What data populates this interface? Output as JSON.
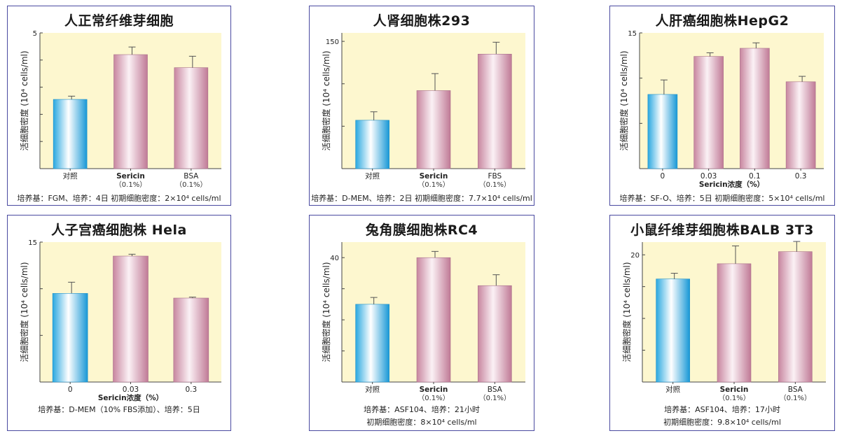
{
  "chart_data": [
    {
      "type": "bar",
      "title": "人正常纤维芽细胞",
      "ylabel": "活细胞密度 (10⁴ cells/ml)",
      "ylim": [
        0,
        5
      ],
      "yticks": [
        {
          "v": 5,
          "label": "5"
        },
        {
          "v": 4,
          "label": ""
        },
        {
          "v": 3,
          "label": ""
        },
        {
          "v": 2,
          "label": ""
        },
        {
          "v": 1,
          "label": ""
        }
      ],
      "categories": [
        {
          "label": "对照",
          "sub": ""
        },
        {
          "label": "Sericin",
          "sub": "（0.1%）"
        },
        {
          "label": "BSA",
          "sub": "（0.1%）"
        }
      ],
      "values": [
        2.55,
        4.2,
        3.72
      ],
      "errors": [
        0.12,
        0.28,
        0.42
      ],
      "xlabel": "",
      "notes": [
        "培养基：FGM、培养：4日 初期细胞密度：2×10⁴ cells/ml"
      ],
      "colors": [
        "#3ab8e8",
        "#d8a8c0",
        "#d8a8c0"
      ]
    },
    {
      "type": "bar",
      "title": "人肾细胞株293",
      "ylabel": "活细胞密度 (10⁴ cells/ml)",
      "ylim": [
        0,
        160
      ],
      "yticks": [
        {
          "v": 150,
          "label": "150"
        },
        {
          "v": 100,
          "label": ""
        },
        {
          "v": 50,
          "label": ""
        }
      ],
      "categories": [
        {
          "label": "对照",
          "sub": ""
        },
        {
          "label": "Sericin",
          "sub": "（0.1%）"
        },
        {
          "label": "FBS",
          "sub": "（0.1%）"
        }
      ],
      "values": [
        57,
        92,
        135
      ],
      "errors": [
        10,
        20,
        14
      ],
      "xlabel": "",
      "notes": [
        "培养基：D-MEM、培养：2日 初期细胞密度：7.7×10⁴ cells/ml"
      ],
      "colors": [
        "#3ab8e8",
        "#d8a8c0",
        "#d8a8c0"
      ]
    },
    {
      "type": "bar",
      "title": "人肝癌细胞株HepG2",
      "ylabel": "活细胞密度 (10⁴ cells/ml)",
      "ylim": [
        0,
        15
      ],
      "yticks": [
        {
          "v": 15,
          "label": "15"
        },
        {
          "v": 10,
          "label": ""
        },
        {
          "v": 5,
          "label": ""
        }
      ],
      "categories": [
        {
          "label": "0",
          "sub": ""
        },
        {
          "label": "0.03",
          "sub": ""
        },
        {
          "label": "0.1",
          "sub": ""
        },
        {
          "label": "0.3",
          "sub": ""
        }
      ],
      "values": [
        8.2,
        12.4,
        13.3,
        9.6
      ],
      "errors": [
        1.6,
        0.4,
        0.6,
        0.6
      ],
      "xlabel": "Sericin浓度（%）",
      "notes": [
        "培养基：SF-O、培养：5日 初期细胞密度：5×10⁴ cells/ml"
      ],
      "colors": [
        "#3ab8e8",
        "#d8a8c0",
        "#d8a8c0",
        "#d8a8c0"
      ]
    },
    {
      "type": "bar",
      "title": "人子宫癌细胞株 Hela",
      "ylabel": "活细胞密度 (10⁴ cells/ml)",
      "ylim": [
        0,
        15
      ],
      "yticks": [
        {
          "v": 15,
          "label": "15"
        },
        {
          "v": 10,
          "label": ""
        },
        {
          "v": 5,
          "label": ""
        }
      ],
      "categories": [
        {
          "label": "0",
          "sub": ""
        },
        {
          "label": "0.03",
          "sub": ""
        },
        {
          "label": "0.3",
          "sub": ""
        }
      ],
      "values": [
        9.5,
        13.5,
        9.0
      ],
      "errors": [
        1.2,
        0.2,
        0.1
      ],
      "xlabel": "Sericin浓度（%）",
      "notes": [
        "培养基：D-MEM（10% FBS添加）、培养：5日"
      ],
      "colors": [
        "#3ab8e8",
        "#d8a8c0",
        "#d8a8c0"
      ]
    },
    {
      "type": "bar",
      "title": "兔角膜细胞株RC4",
      "ylabel": "活细胞密度 (10⁴ cells/ml)",
      "ylim": [
        0,
        45
      ],
      "yticks": [
        {
          "v": 40,
          "label": "40"
        },
        {
          "v": 30,
          "label": ""
        },
        {
          "v": 20,
          "label": ""
        },
        {
          "v": 10,
          "label": ""
        }
      ],
      "categories": [
        {
          "label": "对照",
          "sub": ""
        },
        {
          "label": "Sericin",
          "sub": "（0.1%）"
        },
        {
          "label": "BSA",
          "sub": "（0.1%）"
        }
      ],
      "values": [
        25,
        40,
        31
      ],
      "errors": [
        2.2,
        2.0,
        3.5
      ],
      "xlabel": "",
      "notes": [
        "培养基：ASF104、培养：21小时",
        "初期细胞密度：8×10⁴ cells/ml"
      ],
      "colors": [
        "#3ab8e8",
        "#d8a8c0",
        "#d8a8c0"
      ]
    },
    {
      "type": "bar",
      "title": "小鼠纤维芽细胞株BALB 3T3",
      "ylabel": "活细胞密度 (10⁴ cells/ml)",
      "ylim": [
        0,
        22
      ],
      "yticks": [
        {
          "v": 20,
          "label": "20"
        },
        {
          "v": 15,
          "label": ""
        },
        {
          "v": 10,
          "label": ""
        },
        {
          "v": 5,
          "label": ""
        }
      ],
      "categories": [
        {
          "label": "对照",
          "sub": ""
        },
        {
          "label": "Sericin",
          "sub": "（0.1%）"
        },
        {
          "label": "BSA",
          "sub": "（0.1%）"
        }
      ],
      "values": [
        16.2,
        18.6,
        20.5
      ],
      "errors": [
        0.9,
        2.8,
        1.6
      ],
      "xlabel": "",
      "notes": [
        "培养基：ASF104、培养：17小时",
        "初期细胞密度：9.8×10⁴ cells/ml"
      ],
      "colors": [
        "#3ab8e8",
        "#d8a8c0",
        "#d8a8c0"
      ]
    }
  ]
}
